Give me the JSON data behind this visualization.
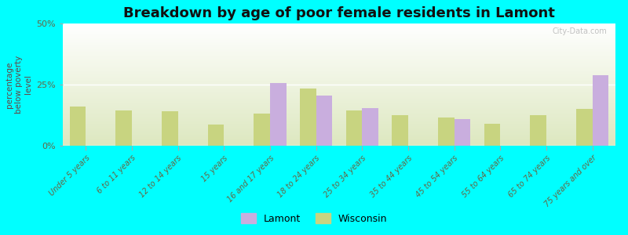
{
  "title": "Breakdown by age of poor female residents in Lamont",
  "categories": [
    "Under 5 years",
    "6 to 11 years",
    "12 to 14 years",
    "15 years",
    "16 and 17 years",
    "18 to 24 years",
    "25 to 34 years",
    "35 to 44 years",
    "45 to 54 years",
    "55 to 64 years",
    "65 to 74 years",
    "75 years and over"
  ],
  "lamont": [
    0,
    0,
    0,
    0,
    25.5,
    20.5,
    15.5,
    0,
    11.0,
    0,
    0,
    29.0
  ],
  "wisconsin": [
    16.0,
    14.5,
    14.0,
    8.5,
    13.0,
    23.5,
    14.5,
    12.5,
    11.5,
    9.0,
    12.5,
    15.0
  ],
  "lamont_color": "#c9aede",
  "wisconsin_color": "#c8d480",
  "background_color": "#00ffff",
  "ylabel": "percentage\nbelow poverty\nlevel",
  "ylim": [
    0,
    50
  ],
  "yticks": [
    0,
    25,
    50
  ],
  "ytick_labels": [
    "0%",
    "25%",
    "50%"
  ],
  "bar_width": 0.35,
  "title_fontsize": 13,
  "axis_label_fontsize": 7.5,
  "tick_fontsize": 7,
  "legend_labels": [
    "Lamont",
    "Wisconsin"
  ],
  "watermark": "City-Data.com"
}
